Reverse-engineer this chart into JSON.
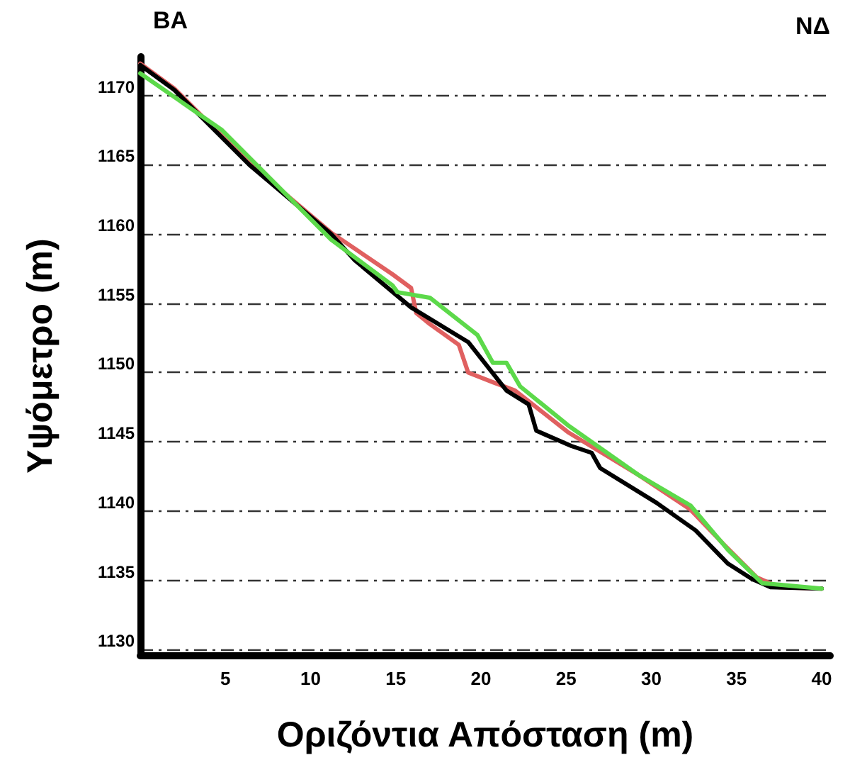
{
  "chart_data": {
    "type": "line",
    "xlabel": "Οριζόντια Απόσταση (m)",
    "ylabel": "Υψόμετρο (m)",
    "annotations": [
      "ΒΑ",
      "ΝΔ"
    ],
    "xlim": [
      0,
      40.5
    ],
    "xticks": [
      5,
      10,
      15,
      20,
      25,
      30,
      35,
      40
    ],
    "ylim": [
      1129.6,
      1172.8
    ],
    "yticks": [
      1130,
      1135,
      1140,
      1145,
      1150,
      1155,
      1160,
      1165,
      1170
    ],
    "grid": "y",
    "line_style": "solid",
    "marker": "none",
    "series": [
      {
        "color": "#e06060",
        "x": [
          0,
          2,
          6.4,
          11.2,
          14.8,
          15.9,
          16.2,
          17,
          18.7,
          19.25,
          20.7,
          22,
          25.1,
          29.25,
          32.3,
          34.25,
          36.2,
          37.5,
          40
        ],
        "values": [
          1172.3,
          1170.5,
          1165.1,
          1160.1,
          1157.1,
          1156.1,
          1154.3,
          1153.5,
          1152.0,
          1150.0,
          1149.3,
          1148.7,
          1145.7,
          1142.6,
          1140.1,
          1137.6,
          1135.2,
          1134.5,
          1134.4
        ]
      },
      {
        "color": "#000000",
        "x": [
          0,
          2,
          6.4,
          11.2,
          12.6,
          15.9,
          19.25,
          21.5,
          22.8,
          23.25,
          25.3,
          26.5,
          27,
          30.3,
          32.6,
          34.5,
          35.9,
          37,
          40
        ],
        "values": [
          1172.2,
          1170.4,
          1165,
          1160,
          1158.1,
          1154.7,
          1152.2,
          1148.7,
          1147.7,
          1145.8,
          1144.7,
          1144.2,
          1143.1,
          1140.6,
          1138.6,
          1136.2,
          1135.1,
          1134.5,
          1134.4
        ]
      },
      {
        "color": "#5cd94a",
        "x": [
          0,
          4.8,
          11.2,
          14.8,
          15.1,
          17,
          19.8,
          20.7,
          21.5,
          22.3,
          25.1,
          29.25,
          32.3,
          34.5,
          36.5,
          40
        ],
        "values": [
          1171.6,
          1167.5,
          1159.6,
          1156.3,
          1155.8,
          1155.4,
          1152.7,
          1150.7,
          1150.7,
          1149.0,
          1146.2,
          1142.6,
          1140.4,
          1137.2,
          1134.8,
          1134.4
        ]
      }
    ]
  }
}
